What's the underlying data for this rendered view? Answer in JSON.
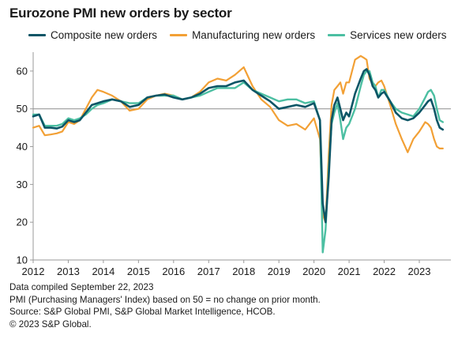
{
  "title": "Eurozone PMI new orders by sector",
  "notes": [
    "Data compiled September 22, 2023",
    "PMI (Purchasing Managers' Index) based on 50 = no change on prior month.",
    "Source: S&P Global PMI, S&P Global Market Intelligence, HCOB.",
    "© 2023 S&P Global."
  ],
  "chart_data": {
    "type": "line",
    "title": "Eurozone PMI new orders by sector",
    "xlabel": "",
    "ylabel": "",
    "x_ticks": [
      "2012",
      "2013",
      "2014",
      "2015",
      "2016",
      "2017",
      "2018",
      "2019",
      "2020",
      "2021",
      "2022",
      "2023"
    ],
    "xlim": [
      2012.0,
      2023.9
    ],
    "ylim": [
      10,
      65
    ],
    "y_ticks": [
      10,
      20,
      30,
      40,
      50,
      60
    ],
    "reference_line": 50,
    "grid": false,
    "legend_position": "top",
    "series": [
      {
        "name": "Composite new orders",
        "color": "#0b5566",
        "x": [
          2012.0,
          2012.17,
          2012.33,
          2012.5,
          2012.67,
          2012.83,
          2013.0,
          2013.17,
          2013.33,
          2013.5,
          2013.67,
          2013.83,
          2014.0,
          2014.25,
          2014.5,
          2014.75,
          2015.0,
          2015.25,
          2015.5,
          2015.75,
          2016.0,
          2016.25,
          2016.5,
          2016.75,
          2017.0,
          2017.25,
          2017.5,
          2017.75,
          2018.0,
          2018.25,
          2018.5,
          2018.75,
          2019.0,
          2019.25,
          2019.5,
          2019.75,
          2020.0,
          2020.17,
          2020.25,
          2020.33,
          2020.42,
          2020.5,
          2020.58,
          2020.67,
          2020.75,
          2020.83,
          2020.92,
          2021.0,
          2021.17,
          2021.33,
          2021.42,
          2021.5,
          2021.58,
          2021.67,
          2021.75,
          2021.83,
          2021.92,
          2022.0,
          2022.17,
          2022.33,
          2022.5,
          2022.67,
          2022.83,
          2023.0,
          2023.17,
          2023.25,
          2023.33,
          2023.42,
          2023.5,
          2023.58,
          2023.67
        ],
        "values": [
          48,
          48.5,
          45,
          45,
          44.8,
          45.3,
          47,
          46.5,
          47,
          49,
          51,
          51.5,
          52,
          52.5,
          52,
          50.5,
          51,
          53,
          53.5,
          53.8,
          53,
          52.5,
          53,
          54,
          55.5,
          56,
          56,
          57,
          57.5,
          55,
          53.5,
          52,
          50,
          50.5,
          51,
          50.5,
          51.5,
          47,
          25,
          20,
          32,
          47,
          51,
          53,
          50,
          47,
          49,
          48,
          54,
          58,
          60,
          60.5,
          59,
          56,
          55,
          53,
          54,
          54.5,
          52,
          49,
          47.5,
          47,
          47.5,
          49,
          51,
          52,
          52.5,
          50,
          47,
          45,
          44.5
        ]
      },
      {
        "name": "Manufacturing new orders",
        "color": "#f2a035",
        "x": [
          2012.0,
          2012.17,
          2012.33,
          2012.5,
          2012.67,
          2012.83,
          2013.0,
          2013.17,
          2013.33,
          2013.5,
          2013.67,
          2013.83,
          2014.0,
          2014.25,
          2014.5,
          2014.75,
          2015.0,
          2015.25,
          2015.5,
          2015.75,
          2016.0,
          2016.25,
          2016.5,
          2016.75,
          2017.0,
          2017.25,
          2017.5,
          2017.75,
          2018.0,
          2018.25,
          2018.5,
          2018.75,
          2019.0,
          2019.25,
          2019.5,
          2019.75,
          2020.0,
          2020.17,
          2020.25,
          2020.33,
          2020.42,
          2020.5,
          2020.58,
          2020.67,
          2020.75,
          2020.83,
          2020.92,
          2021.0,
          2021.17,
          2021.33,
          2021.42,
          2021.5,
          2021.58,
          2021.67,
          2021.75,
          2021.83,
          2021.92,
          2022.0,
          2022.17,
          2022.33,
          2022.5,
          2022.67,
          2022.83,
          2023.0,
          2023.17,
          2023.25,
          2023.33,
          2023.42,
          2023.5,
          2023.58,
          2023.67
        ],
        "values": [
          45,
          45.5,
          43,
          43.2,
          43.5,
          44,
          46.5,
          46,
          47,
          50,
          53,
          55,
          54.5,
          53.5,
          52,
          49.5,
          50,
          52.5,
          53.5,
          54,
          53.5,
          52.5,
          53,
          54.5,
          57,
          58,
          57.5,
          59,
          61,
          56,
          52.5,
          50.5,
          47,
          45.5,
          46,
          44.5,
          47.5,
          42,
          22,
          20,
          38,
          51,
          55,
          56,
          57,
          54,
          57,
          57,
          63,
          64,
          63.5,
          63,
          58,
          56.5,
          56,
          57,
          57.5,
          56,
          51,
          46,
          42,
          38.5,
          42,
          44,
          46.5,
          46,
          45,
          42,
          40,
          39.5,
          39.5
        ]
      },
      {
        "name": "Services new orders",
        "color": "#4cbfa2",
        "x": [
          2012.0,
          2012.17,
          2012.33,
          2012.5,
          2012.67,
          2012.83,
          2013.0,
          2013.17,
          2013.33,
          2013.5,
          2013.67,
          2013.83,
          2014.0,
          2014.25,
          2014.5,
          2014.75,
          2015.0,
          2015.25,
          2015.5,
          2015.75,
          2016.0,
          2016.25,
          2016.5,
          2016.75,
          2017.0,
          2017.25,
          2017.5,
          2017.75,
          2018.0,
          2018.25,
          2018.5,
          2018.75,
          2019.0,
          2019.25,
          2019.5,
          2019.75,
          2020.0,
          2020.17,
          2020.25,
          2020.33,
          2020.42,
          2020.5,
          2020.58,
          2020.67,
          2020.75,
          2020.83,
          2020.92,
          2021.0,
          2021.17,
          2021.33,
          2021.42,
          2021.5,
          2021.58,
          2021.67,
          2021.75,
          2021.83,
          2021.92,
          2022.0,
          2022.17,
          2022.33,
          2022.5,
          2022.67,
          2022.83,
          2023.0,
          2023.17,
          2023.25,
          2023.33,
          2023.42,
          2023.5,
          2023.58,
          2023.67
        ],
        "values": [
          48.5,
          48.5,
          45.5,
          45.5,
          45.5,
          46,
          47.5,
          47,
          47.5,
          48.5,
          50,
          51,
          51.5,
          52.5,
          52,
          51.5,
          51.5,
          53,
          53.5,
          53.5,
          53.5,
          52.5,
          53,
          53.5,
          54.5,
          55.5,
          55.5,
          55.5,
          57,
          55,
          54,
          53,
          52,
          52.5,
          52.5,
          51.5,
          52,
          47,
          12,
          18,
          34,
          46,
          49,
          51.5,
          47,
          42,
          45,
          46,
          50,
          56,
          59,
          60,
          60,
          57,
          56,
          53,
          55,
          55,
          52,
          50,
          49,
          48.5,
          48,
          50,
          53,
          54.5,
          55,
          53.5,
          50,
          47,
          46.5
        ]
      }
    ]
  }
}
